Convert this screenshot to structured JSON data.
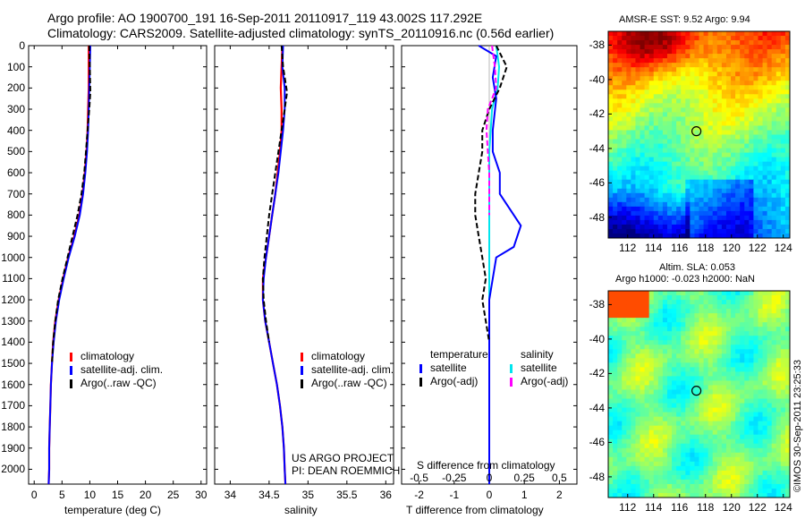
{
  "header": {
    "line1": "Argo profile: AO 1900700_191 16-Sep-2011 20110917_119 43.002S 117.292E",
    "line2": "Climatology: CARS2009. Satellite-adjusted climatology: synTS_20110916.nc (0.56d earlier)"
  },
  "credit": {
    "project": "US ARGO PROJECT",
    "pi": "PI: DEAN ROEMMICH",
    "stamp": "©IMOS 30-Sep-2011 23:25:33"
  },
  "colors": {
    "climatology": "#ff0000",
    "satellite": "#0000ff",
    "argo": "#000000",
    "sal_satellite": "#00e5ee",
    "sal_argo": "#ff00ff"
  },
  "panels": {
    "temp": {
      "xlabel": "temperature (deg C)",
      "xticks": [
        "0",
        "5",
        "10",
        "15",
        "20",
        "25",
        "30"
      ],
      "legend": [
        "climatology",
        "satellite-adj. clim.",
        "Argo(..raw -QC)"
      ]
    },
    "sal": {
      "xlabel": "salinity",
      "xticks": [
        "34",
        "34.5",
        "35",
        "35.5",
        "36"
      ],
      "legend": [
        "climatology",
        "satellite-adj. clim.",
        "Argo(..raw -QC)"
      ]
    },
    "diff": {
      "xlabel": "T difference from climatology",
      "top_label": "S difference from climatology",
      "xticks_top": [
        "-0.5",
        "-0.25",
        "0",
        "0.25",
        "0.5"
      ],
      "xticks_bottom": [
        "-2",
        "-1",
        "0",
        "1",
        "2"
      ],
      "legend_temp_title": "temperature",
      "legend_sal_title": "salinity",
      "legend_temp": [
        "satellite",
        "Argo(-adj)"
      ],
      "legend_sal": [
        "satellite",
        "Argo(-adj)"
      ]
    }
  },
  "depth_ticks": [
    "0",
    "100",
    "200",
    "300",
    "400",
    "500",
    "600",
    "700",
    "800",
    "900",
    "1000",
    "1100",
    "1200",
    "1300",
    "1400",
    "1500",
    "1600",
    "1700",
    "1800",
    "1900",
    "2000"
  ],
  "maps": {
    "sst": {
      "title": "AMSR-E SST: 9.52 Argo: 9.94",
      "yticks": [
        "-38",
        "-40",
        "-42",
        "-44",
        "-46",
        "-48"
      ],
      "xticks": [
        "112",
        "114",
        "116",
        "118",
        "120",
        "122",
        "124"
      ]
    },
    "sla": {
      "title1": "Altim. SLA: 0.053",
      "title2": "Argo h1000: -0.023 h2000: NaN",
      "yticks": [
        "-38",
        "-40",
        "-42",
        "-44",
        "-46",
        "-48"
      ],
      "xticks": [
        "112",
        "114",
        "116",
        "118",
        "120",
        "122",
        "124"
      ]
    }
  },
  "chart_data": [
    {
      "type": "line",
      "title": "",
      "xlabel": "temperature (deg C)",
      "ylabel": "",
      "xlim": [
        -1,
        31
      ],
      "ylim": [
        2070,
        0
      ],
      "y_reversed": true,
      "series": [
        {
          "name": "climatology",
          "x": [
            9.8,
            9.8,
            9.8,
            9.7,
            9.6,
            9.4,
            9.1,
            8.7,
            8.1,
            7.2,
            6.1,
            5.2,
            4.4,
            3.8,
            3.4,
            3.2,
            3.0,
            2.9,
            2.8,
            2.7,
            2.7,
            2.6
          ],
          "y": [
            0,
            100,
            200,
            300,
            400,
            500,
            600,
            700,
            800,
            900,
            1000,
            1100,
            1200,
            1300,
            1400,
            1500,
            1600,
            1700,
            1800,
            1900,
            2000,
            2070
          ]
        },
        {
          "name": "satellite-adj. clim.",
          "x": [
            10.1,
            10.0,
            9.9,
            9.8,
            9.7,
            9.5,
            9.2,
            8.8,
            8.2,
            7.3,
            6.2,
            5.3,
            4.5,
            3.9,
            3.5,
            3.2,
            3.0,
            2.9,
            2.8,
            2.7,
            2.7,
            2.6
          ],
          "y": [
            0,
            100,
            200,
            300,
            400,
            500,
            600,
            700,
            800,
            900,
            1000,
            1100,
            1200,
            1300,
            1400,
            1500,
            1600,
            1700,
            1800,
            1900,
            2000,
            2070
          ]
        },
        {
          "name": "Argo(..raw -QC)",
          "x": [
            9.9,
            10.0,
            10.1,
            9.9,
            9.6,
            9.3,
            9.0,
            8.5,
            7.8,
            6.9,
            6.0,
            5.1,
            4.3,
            3.8,
            3.4,
            3.2
          ],
          "y": [
            0,
            100,
            220,
            300,
            400,
            500,
            600,
            700,
            800,
            900,
            1000,
            1100,
            1200,
            1300,
            1400,
            1500
          ]
        }
      ]
    },
    {
      "type": "line",
      "title": "",
      "xlabel": "salinity",
      "ylabel": "",
      "xlim": [
        33.8,
        36.1
      ],
      "ylim": [
        2070,
        0
      ],
      "y_reversed": true,
      "series": [
        {
          "name": "climatology",
          "x": [
            34.67,
            34.66,
            34.65,
            34.66,
            34.66,
            34.64,
            34.61,
            34.58,
            34.54,
            34.5,
            34.46,
            34.42,
            34.42,
            34.45,
            34.5,
            34.55,
            34.6,
            34.64,
            34.67,
            34.69,
            34.7,
            34.71
          ],
          "y": [
            0,
            100,
            200,
            300,
            400,
            500,
            600,
            700,
            800,
            900,
            1000,
            1100,
            1200,
            1300,
            1400,
            1500,
            1600,
            1700,
            1800,
            1900,
            2000,
            2070
          ]
        },
        {
          "name": "satellite-adj. clim.",
          "x": [
            34.68,
            34.67,
            34.7,
            34.7,
            34.68,
            34.65,
            34.62,
            34.58,
            34.54,
            34.5,
            34.46,
            34.43,
            34.42,
            34.45,
            34.5,
            34.55,
            34.6,
            34.64,
            34.67,
            34.69,
            34.7,
            34.71
          ],
          "y": [
            0,
            100,
            200,
            300,
            400,
            500,
            600,
            700,
            800,
            900,
            1000,
            1100,
            1200,
            1300,
            1400,
            1500,
            1600,
            1700,
            1800,
            1900,
            2000,
            2070
          ]
        },
        {
          "name": "Argo(..raw -QC)",
          "x": [
            34.66,
            34.68,
            34.73,
            34.7,
            34.66,
            34.62,
            34.58,
            34.54,
            34.5,
            34.47,
            34.44,
            34.42,
            34.43,
            34.46,
            34.5
          ],
          "y": [
            0,
            100,
            220,
            300,
            400,
            500,
            600,
            700,
            800,
            900,
            1000,
            1100,
            1200,
            1300,
            1400
          ]
        }
      ]
    },
    {
      "type": "line",
      "title": "",
      "xlabel": "T difference from climatology",
      "ylabel": "",
      "xlim": [
        -2.5,
        2.5
      ],
      "ylim": [
        2070,
        0
      ],
      "y_reversed": true,
      "series": [
        {
          "name": "temperature satellite",
          "x": [
            -0.3,
            0.2,
            0.1,
            0.2,
            0.1,
            0.1,
            0.3,
            0.3,
            0.9,
            0.7,
            0.2,
            0.1,
            0.0,
            0.0,
            0.0,
            0.0,
            0.0,
            0.0,
            0.0,
            0.0,
            0.0
          ],
          "y": [
            0,
            50,
            150,
            250,
            400,
            500,
            600,
            700,
            850,
            950,
            1000,
            1100,
            1200,
            1300,
            1400,
            1500,
            1600,
            1700,
            1800,
            1900,
            2070
          ]
        },
        {
          "name": "temperature Argo(-adj)",
          "x": [
            0.2,
            0.5,
            0.3,
            0.0,
            -0.2,
            -0.2,
            -0.4,
            -0.4,
            -0.3,
            -0.2,
            -0.1,
            -0.2,
            -0.1,
            0.0
          ],
          "y": [
            0,
            100,
            200,
            300,
            400,
            500,
            700,
            800,
            900,
            1000,
            1100,
            1200,
            1300,
            1400
          ]
        }
      ]
    },
    {
      "type": "line",
      "title": "",
      "xlabel": "S difference from climatology",
      "ylabel": "",
      "xlim": [
        -0.625,
        0.625
      ],
      "ylim": [
        2070,
        0
      ],
      "y_reversed": true,
      "series": [
        {
          "name": "salinity satellite",
          "x": [
            0.05,
            0.07,
            0.06,
            0.02,
            0.01,
            0.0,
            0.0,
            0.0,
            0.0,
            0.0,
            0.0,
            0.0,
            0.0,
            0.0,
            0.0
          ],
          "y": [
            0,
            100,
            200,
            300,
            400,
            500,
            600,
            800,
            1000,
            1200,
            1400,
            1600,
            1800,
            2000,
            2070
          ]
        },
        {
          "name": "salinity Argo(-adj)",
          "x": [
            0.02,
            0.04,
            0.05,
            -0.01,
            -0.02,
            -0.01,
            0.0,
            0.0,
            0.0
          ],
          "y": [
            0,
            100,
            200,
            300,
            400,
            500,
            600,
            700,
            800
          ]
        }
      ]
    },
    {
      "type": "heatmap",
      "title": "AMSR-E SST: 9.52 Argo: 9.94",
      "xlabel": "",
      "ylabel": "",
      "xlim": [
        110.5,
        124.5
      ],
      "ylim": [
        -49.2,
        -37.2
      ],
      "marker": {
        "x": 117.3,
        "y": -43.0
      }
    },
    {
      "type": "heatmap",
      "title": "Altim. SLA: 0.053",
      "xlabel": "",
      "ylabel": "",
      "xlim": [
        110.5,
        124.5
      ],
      "ylim": [
        -49.2,
        -37.2
      ],
      "marker": {
        "x": 117.3,
        "y": -43.0
      }
    }
  ]
}
